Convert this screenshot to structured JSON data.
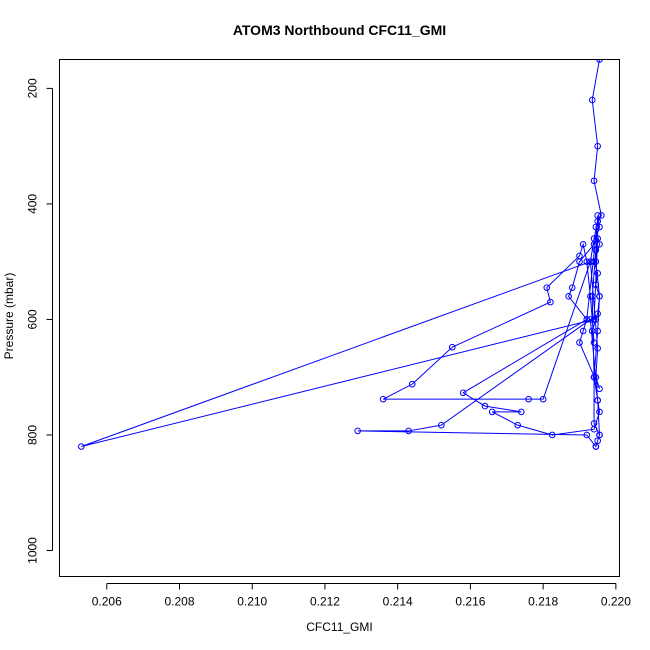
{
  "chart_data": {
    "type": "line",
    "title": "ATOM3 Northbound CFC11_GMI",
    "xlabel": "CFC11_GMI",
    "ylabel": "Pressure (mbar)",
    "xlim": [
      0.2047,
      0.2201
    ],
    "ylim": [
      1045,
      150
    ],
    "y_reversed": true,
    "grid": false,
    "legend": "none",
    "x_ticks": [
      {
        "value": 0.206,
        "label": "0.206"
      },
      {
        "value": 0.208,
        "label": "0.208"
      },
      {
        "value": 0.21,
        "label": "0.210"
      },
      {
        "value": 0.212,
        "label": "0.212"
      },
      {
        "value": 0.214,
        "label": "0.214"
      },
      {
        "value": 0.216,
        "label": "0.216"
      },
      {
        "value": 0.218,
        "label": "0.218"
      },
      {
        "value": 0.22,
        "label": "0.220"
      }
    ],
    "y_ticks": [
      {
        "value": 200,
        "label": "200"
      },
      {
        "value": 400,
        "label": "400"
      },
      {
        "value": 600,
        "label": "600"
      },
      {
        "value": 800,
        "label": "800"
      },
      {
        "value": 1000,
        "label": "1000"
      }
    ],
    "series_color": "#0000ff",
    "marker": "open-circle",
    "series": [
      {
        "x": [
          0.21955,
          0.21935,
          0.2195,
          0.2194,
          0.2196,
          0.21945,
          0.21955,
          0.2194,
          0.2195,
          0.21945,
          0.21955,
          0.2195,
          0.21945,
          0.21935,
          0.2194,
          0.2193,
          0.2192,
          0.2191,
          0.219,
          0.2181,
          0.2182,
          0.2155,
          0.2144,
          0.2136,
          0.2176,
          0.218,
          0.2193,
          0.2194,
          0.2195,
          0.2192,
          0.2158,
          0.2164,
          0.2174,
          0.2166,
          0.2173,
          0.21825,
          0.2194,
          0.21955,
          0.2195,
          0.2193,
          0.2152,
          0.2143,
          0.2129,
          0.2192,
          0.21945,
          0.21955,
          0.2195,
          0.2194,
          0.21935,
          0.21945,
          0.2195,
          0.2194,
          0.2053,
          0.2193,
          0.2195,
          0.21945,
          0.21955,
          0.219,
          0.2191,
          0.2192,
          0.2187,
          0.2188,
          0.219,
          0.2194,
          0.21955,
          0.2195,
          0.21945,
          0.21955,
          0.2195,
          0.2194,
          0.2194,
          0.21955,
          0.21945,
          0.2195
        ],
        "y": [
          150,
          220,
          300,
          360,
          420,
          440,
          470,
          500,
          520,
          540,
          560,
          590,
          600,
          620,
          640,
          560,
          500,
          470,
          490,
          545,
          570,
          648,
          712,
          738,
          738,
          738,
          500,
          460,
          430,
          600,
          727,
          750,
          760,
          760,
          783,
          800,
          790,
          760,
          740,
          600,
          783,
          793,
          793,
          800,
          820,
          800,
          740,
          700,
          560,
          480,
          460,
          600,
          820,
          500,
          650,
          700,
          720,
          640,
          620,
          600,
          560,
          545,
          500,
          470,
          440,
          420,
          500,
          560,
          620,
          700,
          780,
          800,
          820,
          810
        ]
      }
    ]
  }
}
